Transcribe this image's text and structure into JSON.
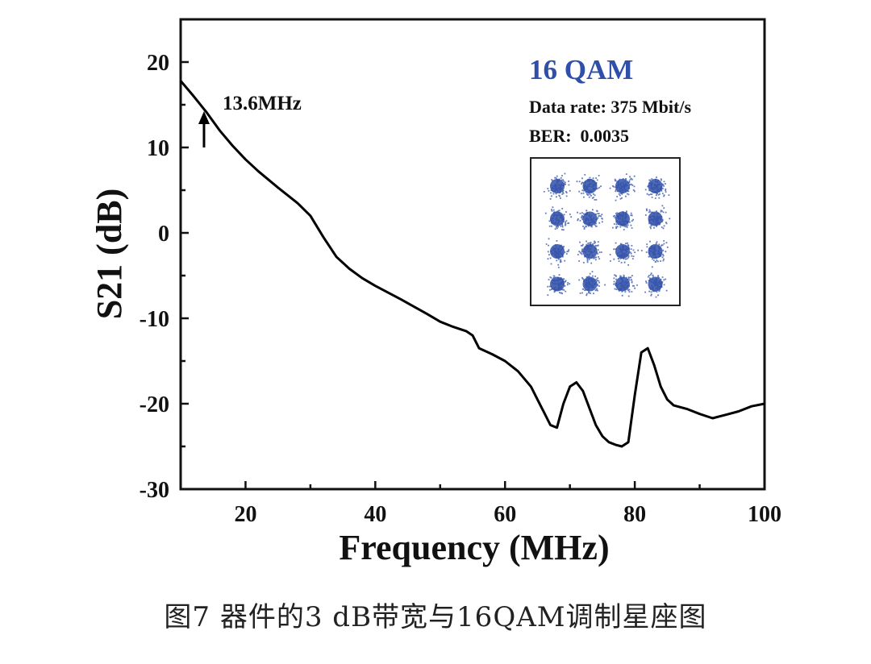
{
  "chart_data": {
    "type": "line",
    "xlabel": "Frequency (MHz)",
    "ylabel": "S21 (dB)",
    "xlim": [
      10,
      100
    ],
    "ylim": [
      -30,
      25
    ],
    "x_ticks": [
      20,
      40,
      60,
      80,
      100
    ],
    "y_ticks": [
      20,
      10,
      0,
      -10,
      -20,
      -30
    ],
    "x_tick_labels": [
      "20",
      "40",
      "60",
      "80",
      "100"
    ],
    "y_tick_labels": [
      "20",
      "10",
      "0",
      "-10",
      "-20",
      "-30"
    ],
    "series": [
      {
        "name": "S21",
        "color": "#000000",
        "x": [
          10,
          12,
          14,
          16,
          18,
          20,
          22,
          25,
          28,
          30,
          32,
          34,
          36,
          38,
          40,
          44,
          48,
          50,
          52,
          54,
          55,
          56,
          58,
          60,
          62,
          64,
          65,
          66,
          67,
          68,
          69,
          70,
          71,
          72,
          73,
          74,
          75,
          76,
          77,
          78,
          79,
          80,
          81,
          82,
          83,
          84,
          85,
          86,
          88,
          90,
          92,
          94,
          96,
          98,
          100
        ],
        "y": [
          17.8,
          16.0,
          14.1,
          12.0,
          10.2,
          8.6,
          7.2,
          5.3,
          3.5,
          2.0,
          -0.5,
          -2.8,
          -4.2,
          -5.3,
          -6.2,
          -7.8,
          -9.5,
          -10.4,
          -11.0,
          -11.5,
          -12.0,
          -13.5,
          -14.2,
          -15.0,
          -16.2,
          -18.0,
          -19.5,
          -21.0,
          -22.5,
          -22.8,
          -20.0,
          -18.0,
          -17.5,
          -18.5,
          -20.5,
          -22.5,
          -23.8,
          -24.5,
          -24.8,
          -25.0,
          -24.5,
          -19.0,
          -14.0,
          -13.5,
          -15.5,
          -18.0,
          -19.5,
          -20.2,
          -20.6,
          -21.2,
          -21.7,
          -21.3,
          -20.9,
          -20.3,
          -20.0
        ]
      }
    ],
    "annotation": {
      "text": "13.6MHz",
      "x": 13.6
    },
    "inset": {
      "title": "16 QAM",
      "data_rate": "Data rate: 375 Mbit/s",
      "ber": "BER:  0.0035",
      "constellation_grid": 4,
      "point_color": "#2f4fa8"
    }
  },
  "caption": "图7    器件的3 dB带宽与16QAM调制星座图"
}
